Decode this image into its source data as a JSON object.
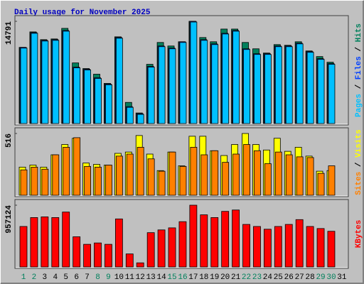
{
  "chart_data": [
    {
      "type": "bar",
      "title": "Daily usage for November 2025",
      "title_color": "#0000c0",
      "legend_separator": " / ",
      "series": [
        {
          "name": "Hits",
          "color": "#00805c",
          "values": [
            11016,
            13260,
            12138,
            12240,
            13770,
            8772,
            7956,
            7140,
            5814,
            12546,
            3060,
            1530,
            8568,
            11730,
            11220,
            11832,
            14791,
            12444,
            11832,
            13668,
            13668,
            11730,
            10812,
            10200,
            11424,
            11322,
            11832,
            10506,
            9690,
            8874,
            0
          ]
        },
        {
          "name": "Files",
          "color": "#0040ff",
          "values": [
            11016,
            13158,
            12036,
            12138,
            13464,
            8160,
            7854,
            6630,
            5712,
            12444,
            2448,
            1428,
            8262,
            11220,
            10914,
            11832,
            14790,
            12138,
            11526,
            13056,
            13464,
            10812,
            10098,
            10098,
            11220,
            11220,
            11628,
            10404,
            9384,
            8670,
            0
          ]
        },
        {
          "name": "Pages",
          "color": "#00c0ff",
          "values": [
            10914,
            13056,
            11934,
            12036,
            13362,
            8058,
            7752,
            6528,
            5610,
            12342,
            2346,
            1326,
            8160,
            11118,
            10812,
            11730,
            14688,
            12036,
            11424,
            12954,
            13362,
            10710,
            9996,
            9996,
            11118,
            11118,
            11526,
            10302,
            9282,
            8568,
            0
          ]
        }
      ],
      "ylim": [
        0,
        14791
      ],
      "yticks": [
        14791
      ]
    },
    {
      "type": "bar",
      "legend_separator": " / ",
      "series": [
        {
          "name": "Visits",
          "color": "#ffff00",
          "values": [
            235,
            252,
            235,
            338,
            424,
            476,
            269,
            258,
            252,
            350,
            361,
            499,
            344,
            206,
            361,
            246,
            493,
            493,
            372,
            332,
            424,
            516,
            424,
            378,
            476,
            367,
            401,
            327,
            201,
            206,
            0
          ]
        },
        {
          "name": "Sites",
          "color": "#ff8000",
          "values": [
            212,
            235,
            218,
            338,
            401,
            481,
            241,
            235,
            252,
            327,
            344,
            401,
            304,
            201,
            361,
            241,
            401,
            338,
            372,
            275,
            344,
            424,
            372,
            264,
            361,
            338,
            321,
            315,
            183,
            246,
            0
          ]
        }
      ],
      "ylim": [
        0,
        516
      ],
      "yticks": [
        516
      ]
    },
    {
      "type": "bar",
      "categories": [
        "1",
        "2",
        "3",
        "4",
        "5",
        "6",
        "7",
        "8",
        "9",
        "10",
        "11",
        "12",
        "13",
        "14",
        "15",
        "16",
        "17",
        "18",
        "19",
        "20",
        "21",
        "22",
        "23",
        "24",
        "25",
        "26",
        "27",
        "28",
        "29",
        "30",
        "31"
      ],
      "category_colors": [
        "#00805c",
        "#00805c",
        "#000000",
        "#000000",
        "#000000",
        "#000000",
        "#000000",
        "#00805c",
        "#00805c",
        "#000000",
        "#000000",
        "#000000",
        "#000000",
        "#000000",
        "#00805c",
        "#00805c",
        "#000000",
        "#000000",
        "#000000",
        "#000000",
        "#000000",
        "#00805c",
        "#00805c",
        "#000000",
        "#000000",
        "#000000",
        "#000000",
        "#000000",
        "#00805c",
        "#00805c",
        "#000000"
      ],
      "series": [
        {
          "name": "KBytes",
          "color": "#ff0000",
          "values": [
            627465,
            765720,
            776355,
            765720,
            850800,
            467940,
            350955,
            372225,
            350955,
            744450,
            202065,
            63810,
            531750,
            574290,
            606195,
            701910,
            957124,
            808260,
            765720,
            861435,
            882705,
            659370,
            627465,
            584925,
            627465,
            659370,
            733815,
            627465,
            595560,
            553020,
            0
          ]
        }
      ],
      "ylim": [
        0,
        957124
      ],
      "yticks": [
        957124
      ]
    }
  ]
}
